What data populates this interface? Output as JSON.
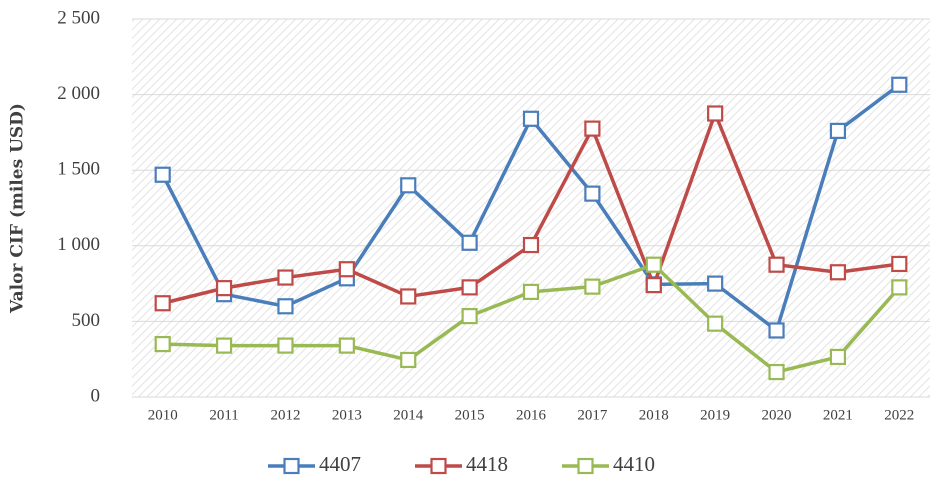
{
  "chart_data": {
    "type": "line",
    "y_label": "Valor CIF (miles USD)",
    "categories": [
      "2010",
      "2011",
      "2012",
      "2013",
      "2014",
      "2015",
      "2016",
      "2017",
      "2018",
      "2019",
      "2020",
      "2021",
      "2022"
    ],
    "series": [
      {
        "name": "4407",
        "color": "#4a7ebb",
        "values": [
          1470,
          680,
          600,
          785,
          1400,
          1020,
          1840,
          1345,
          745,
          750,
          440,
          1760,
          2065
        ]
      },
      {
        "name": "4418",
        "color": "#be4b48",
        "values": [
          620,
          720,
          790,
          845,
          665,
          725,
          1005,
          1775,
          740,
          1875,
          875,
          825,
          880
        ]
      },
      {
        "name": "4410",
        "color": "#98b954",
        "values": [
          350,
          340,
          340,
          340,
          245,
          535,
          695,
          730,
          875,
          485,
          165,
          265,
          725
        ]
      }
    ],
    "ylim": [
      0,
      2500
    ],
    "yticks": [
      0,
      500,
      {
        "value": 1000,
        "label": "1 000"
      },
      {
        "value": 1500,
        "label": "1 500"
      },
      {
        "value": 2000,
        "label": "2 000"
      },
      {
        "value": 2500,
        "label": "2 500"
      }
    ],
    "grid": true,
    "legend": "bottom"
  }
}
